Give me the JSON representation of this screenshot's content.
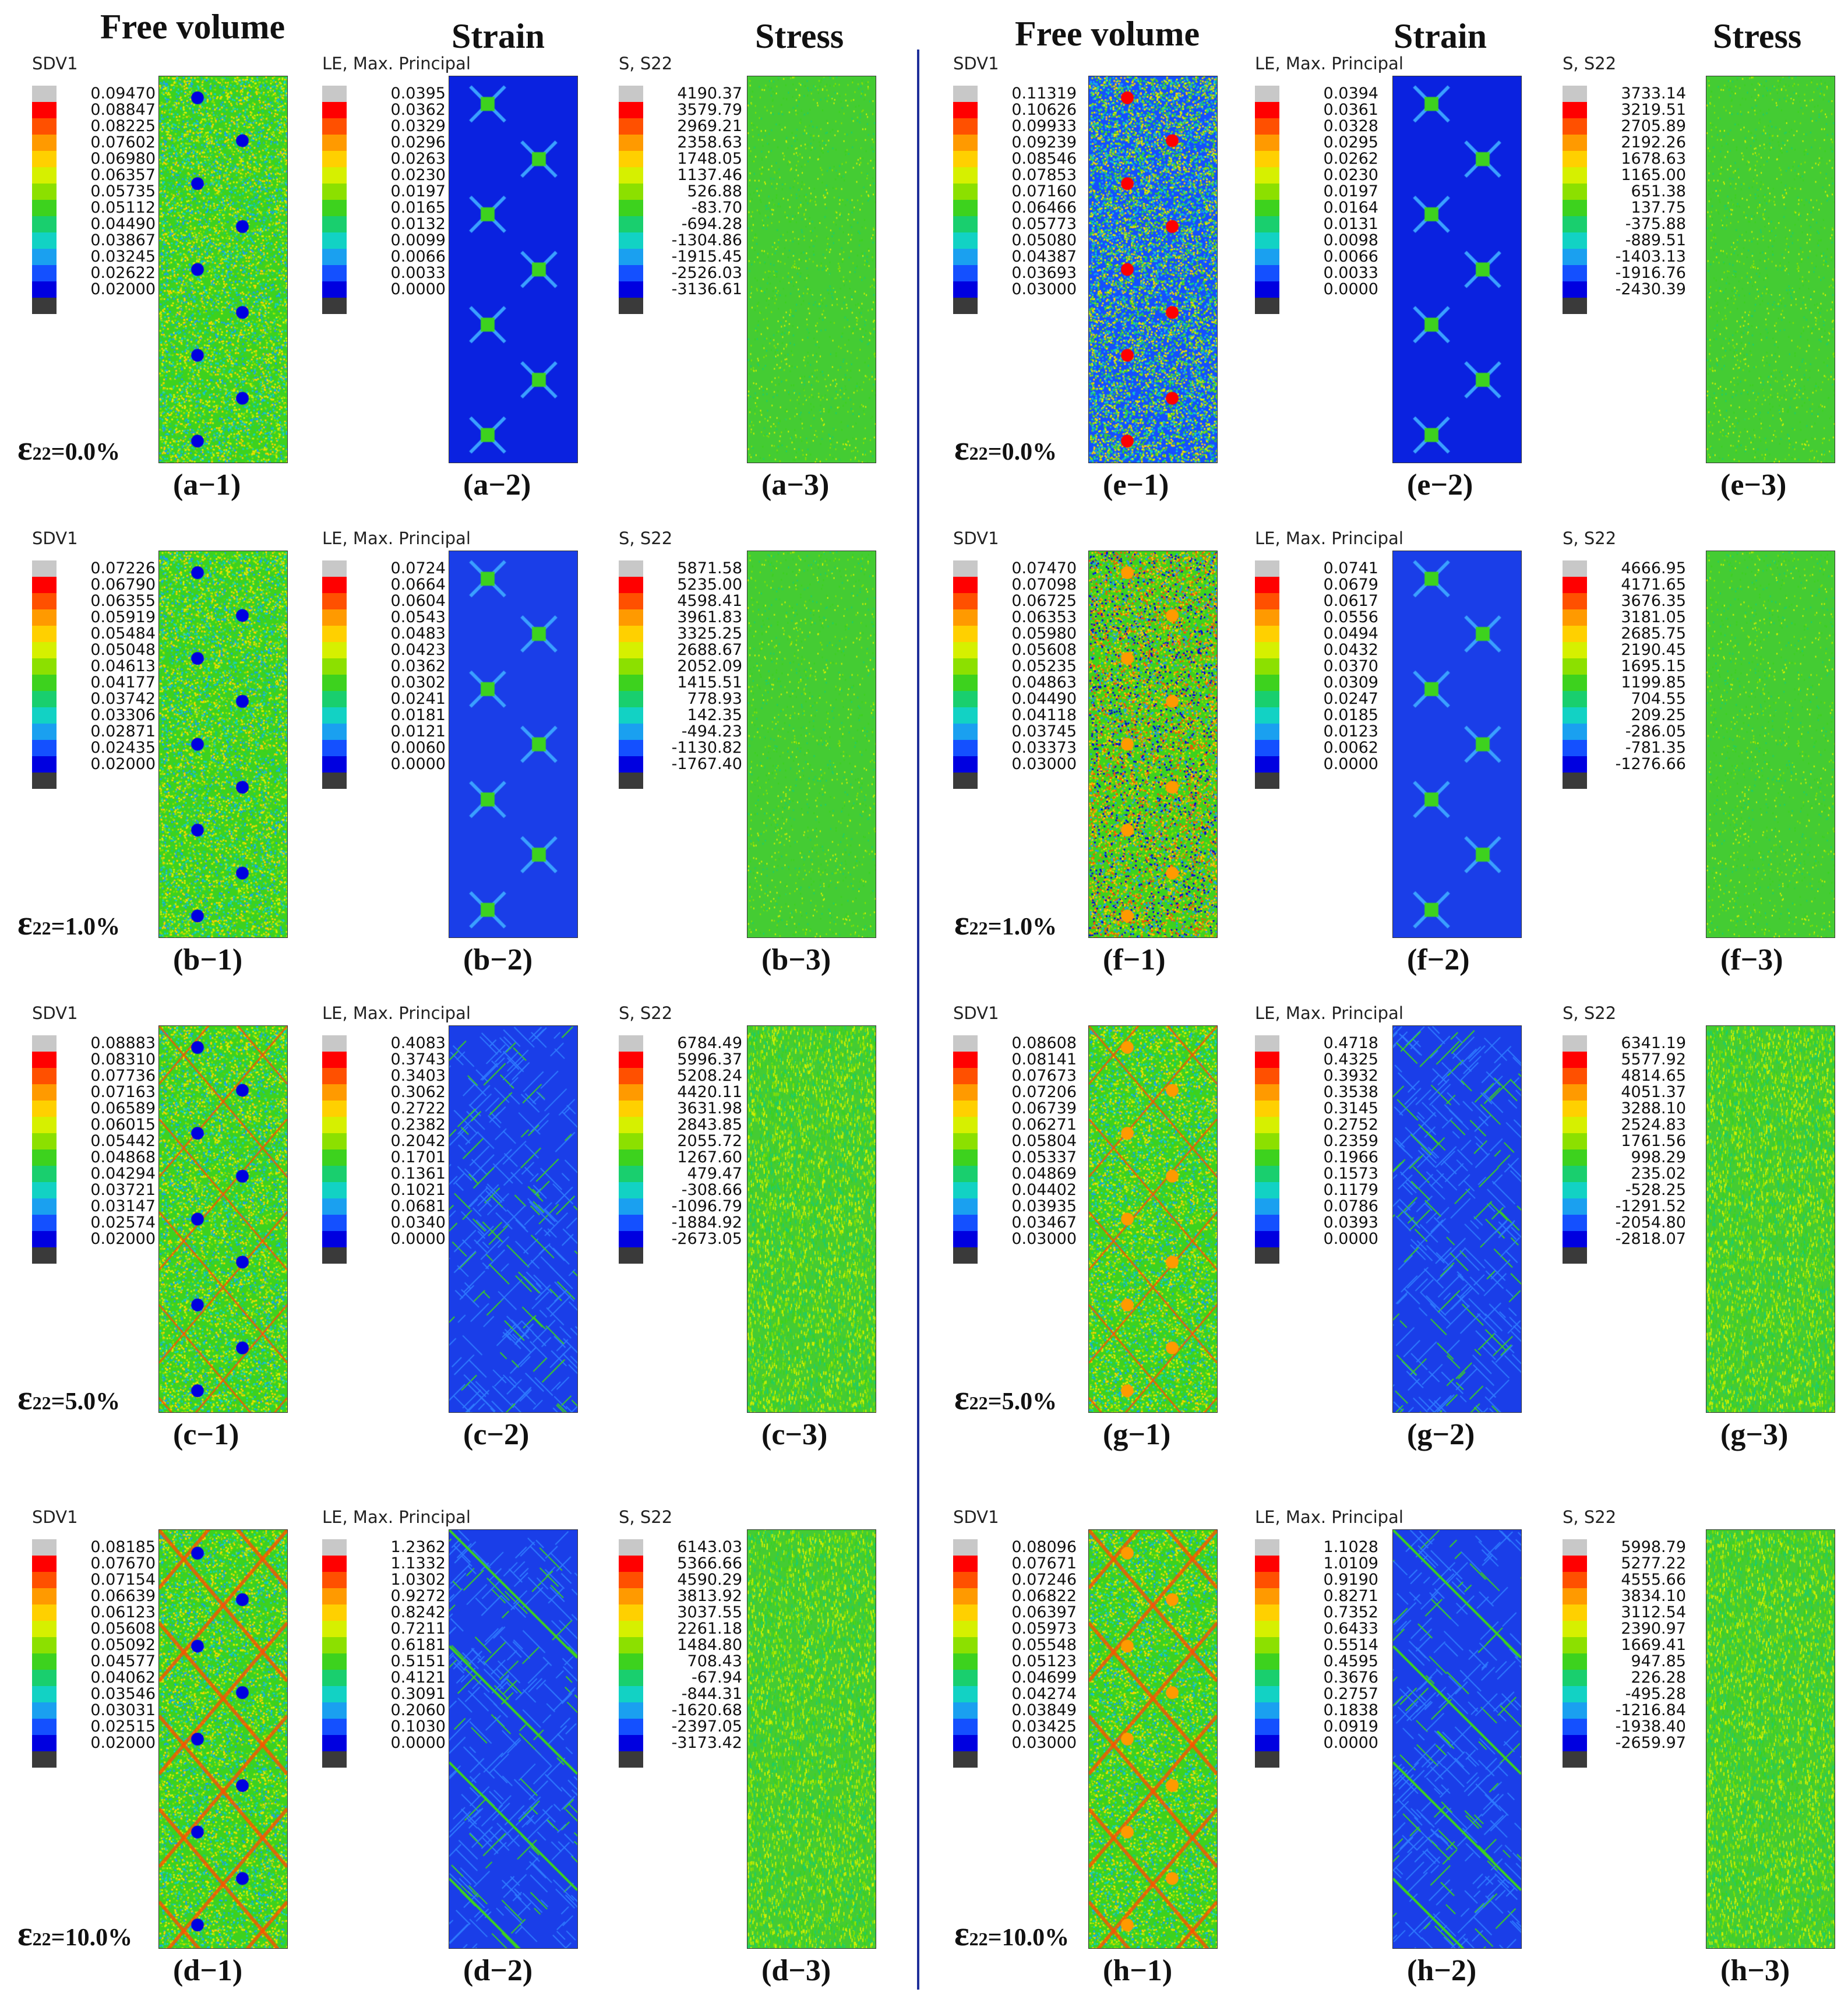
{
  "headers": {
    "left": {
      "free_volume": "Free volume",
      "strain": "Strain",
      "stress": "Stress"
    },
    "right": {
      "free_volume": "Free volume",
      "strain": "Strain",
      "stress": "Stress"
    }
  },
  "strain_symbol": "ε",
  "strain_sub": "22",
  "rows": [
    {
      "left": {
        "strain_value": "=0.0%",
        "fv": {
          "title": "SDV1",
          "values": [
            "0.09470",
            "0.08847",
            "0.08225",
            "0.07602",
            "0.06980",
            "0.06357",
            "0.05735",
            "0.05112",
            "0.04490",
            "0.03867",
            "0.03245",
            "0.02622",
            "0.02000"
          ],
          "label": "(a−1)"
        },
        "st": {
          "title": "LE, Max. Principal",
          "values": [
            "0.0395",
            "0.0362",
            "0.0329",
            "0.0296",
            "0.0263",
            "0.0230",
            "0.0197",
            "0.0165",
            "0.0132",
            "0.0099",
            "0.0066",
            "0.0033",
            "0.0000"
          ],
          "label": "(a−2)"
        },
        "ss": {
          "title": "S, S22",
          "values": [
            "4190.37",
            "3579.79",
            "2969.21",
            "2358.63",
            "1748.05",
            "1137.46",
            "526.88",
            "-83.70",
            "-694.28",
            "-1304.86",
            "-1915.45",
            "-2526.03",
            "-3136.61"
          ],
          "label": "(a−3)"
        }
      },
      "right": {
        "strain_value": "=0.0%",
        "fv": {
          "title": "SDV1",
          "values": [
            "0.11319",
            "0.10626",
            "0.09933",
            "0.09239",
            "0.08546",
            "0.07853",
            "0.07160",
            "0.06466",
            "0.05773",
            "0.05080",
            "0.04387",
            "0.03693",
            "0.03000"
          ],
          "label": "(e−1)"
        },
        "st": {
          "title": "LE, Max. Principal",
          "values": [
            "0.0394",
            "0.0361",
            "0.0328",
            "0.0295",
            "0.0262",
            "0.0230",
            "0.0197",
            "0.0164",
            "0.0131",
            "0.0098",
            "0.0066",
            "0.0033",
            "0.0000"
          ],
          "label": "(e−2)"
        },
        "ss": {
          "title": "S, S22",
          "values": [
            "3733.14",
            "3219.51",
            "2705.89",
            "2192.26",
            "1678.63",
            "1165.00",
            "651.38",
            "137.75",
            "-375.88",
            "-889.51",
            "-1403.13",
            "-1916.76",
            "-2430.39"
          ],
          "label": "(e−3)"
        }
      }
    },
    {
      "left": {
        "strain_value": "=1.0%",
        "fv": {
          "title": "SDV1",
          "values": [
            "0.07226",
            "0.06790",
            "0.06355",
            "0.05919",
            "0.05484",
            "0.05048",
            "0.04613",
            "0.04177",
            "0.03742",
            "0.03306",
            "0.02871",
            "0.02435",
            "0.02000"
          ],
          "label": "(b−1)"
        },
        "st": {
          "title": "LE, Max. Principal",
          "values": [
            "0.0724",
            "0.0664",
            "0.0604",
            "0.0543",
            "0.0483",
            "0.0423",
            "0.0362",
            "0.0302",
            "0.0241",
            "0.0181",
            "0.0121",
            "0.0060",
            "0.0000"
          ],
          "label": "(b−2)"
        },
        "ss": {
          "title": "S, S22",
          "values": [
            "5871.58",
            "5235.00",
            "4598.41",
            "3961.83",
            "3325.25",
            "2688.67",
            "2052.09",
            "1415.51",
            "778.93",
            "142.35",
            "-494.23",
            "-1130.82",
            "-1767.40"
          ],
          "label": "(b−3)"
        }
      },
      "right": {
        "strain_value": "=1.0%",
        "fv": {
          "title": "SDV1",
          "values": [
            "0.07470",
            "0.07098",
            "0.06725",
            "0.06353",
            "0.05980",
            "0.05608",
            "0.05235",
            "0.04863",
            "0.04490",
            "0.04118",
            "0.03745",
            "0.03373",
            "0.03000"
          ],
          "label": "(f−1)"
        },
        "st": {
          "title": "LE, Max. Principal",
          "values": [
            "0.0741",
            "0.0679",
            "0.0617",
            "0.0556",
            "0.0494",
            "0.0432",
            "0.0370",
            "0.0309",
            "0.0247",
            "0.0185",
            "0.0123",
            "0.0062",
            "0.0000"
          ],
          "label": "(f−2)"
        },
        "ss": {
          "title": "S, S22",
          "values": [
            "4666.95",
            "4171.65",
            "3676.35",
            "3181.05",
            "2685.75",
            "2190.45",
            "1695.15",
            "1199.85",
            "704.55",
            "209.25",
            "-286.05",
            "-781.35",
            "-1276.66"
          ],
          "label": "(f−3)"
        }
      }
    },
    {
      "left": {
        "strain_value": "=5.0%",
        "fv": {
          "title": "SDV1",
          "values": [
            "0.08883",
            "0.08310",
            "0.07736",
            "0.07163",
            "0.06589",
            "0.06015",
            "0.05442",
            "0.04868",
            "0.04294",
            "0.03721",
            "0.03147",
            "0.02574",
            "0.02000"
          ],
          "label": "(c−1)"
        },
        "st": {
          "title": "LE, Max. Principal",
          "values": [
            "0.4083",
            "0.3743",
            "0.3403",
            "0.3062",
            "0.2722",
            "0.2382",
            "0.2042",
            "0.1701",
            "0.1361",
            "0.1021",
            "0.0681",
            "0.0340",
            "0.0000"
          ],
          "label": "(c−2)"
        },
        "ss": {
          "title": "S, S22",
          "values": [
            "6784.49",
            "5996.37",
            "5208.24",
            "4420.11",
            "3631.98",
            "2843.85",
            "2055.72",
            "1267.60",
            "479.47",
            "-308.66",
            "-1096.79",
            "-1884.92",
            "-2673.05"
          ],
          "label": "(c−3)"
        }
      },
      "right": {
        "strain_value": "=5.0%",
        "fv": {
          "title": "SDV1",
          "values": [
            "0.08608",
            "0.08141",
            "0.07673",
            "0.07206",
            "0.06739",
            "0.06271",
            "0.05804",
            "0.05337",
            "0.04869",
            "0.04402",
            "0.03935",
            "0.03467",
            "0.03000"
          ],
          "label": "(g−1)"
        },
        "st": {
          "title": "LE, Max. Principal",
          "values": [
            "0.4718",
            "0.4325",
            "0.3932",
            "0.3538",
            "0.3145",
            "0.2752",
            "0.2359",
            "0.1966",
            "0.1573",
            "0.1179",
            "0.0786",
            "0.0393",
            "0.0000"
          ],
          "label": "(g−2)"
        },
        "ss": {
          "title": "S, S22",
          "values": [
            "6341.19",
            "5577.92",
            "4814.65",
            "4051.37",
            "3288.10",
            "2524.83",
            "1761.56",
            "998.29",
            "235.02",
            "-528.25",
            "-1291.52",
            "-2054.80",
            "-2818.07"
          ],
          "label": "(g−3)"
        }
      }
    },
    {
      "left": {
        "strain_value": "=10.0%",
        "fv": {
          "title": "SDV1",
          "values": [
            "0.08185",
            "0.07670",
            "0.07154",
            "0.06639",
            "0.06123",
            "0.05608",
            "0.05092",
            "0.04577",
            "0.04062",
            "0.03546",
            "0.03031",
            "0.02515",
            "0.02000"
          ],
          "label": "(d−1)"
        },
        "st": {
          "title": "LE, Max. Principal",
          "values": [
            "1.2362",
            "1.1332",
            "1.0302",
            "0.9272",
            "0.8242",
            "0.7211",
            "0.6181",
            "0.5151",
            "0.4121",
            "0.3091",
            "0.2060",
            "0.1030",
            "0.0000"
          ],
          "label": "(d−2)"
        },
        "ss": {
          "title": "S, S22",
          "values": [
            "6143.03",
            "5366.66",
            "4590.29",
            "3813.92",
            "3037.55",
            "2261.18",
            "1484.80",
            "708.43",
            "-67.94",
            "-844.31",
            "-1620.68",
            "-2397.05",
            "-3173.42"
          ],
          "label": "(d−3)"
        }
      },
      "right": {
        "strain_value": "=10.0%",
        "fv": {
          "title": "SDV1",
          "values": [
            "0.08096",
            "0.07671",
            "0.07246",
            "0.06822",
            "0.06397",
            "0.05973",
            "0.05548",
            "0.05123",
            "0.04699",
            "0.04274",
            "0.03849",
            "0.03425",
            "0.03000"
          ],
          "label": "(h−1)"
        },
        "st": {
          "title": "LE, Max. Principal",
          "values": [
            "1.1028",
            "1.0109",
            "0.9190",
            "0.8271",
            "0.7352",
            "0.6433",
            "0.5514",
            "0.4595",
            "0.3676",
            "0.2757",
            "0.1838",
            "0.0919",
            "0.0000"
          ],
          "label": "(h−2)"
        },
        "ss": {
          "title": "S, S22",
          "values": [
            "5998.79",
            "5277.22",
            "4555.66",
            "3834.10",
            "3112.54",
            "2390.97",
            "1669.41",
            "947.85",
            "226.28",
            "-495.28",
            "-1216.84",
            "-1938.40",
            "-2659.97"
          ],
          "label": "(h−3)"
        }
      }
    }
  ],
  "colors": {
    "colormap": [
      "#c8c8c8",
      "#ff0000",
      "#ff5000",
      "#ff9a00",
      "#ffd000",
      "#d6f000",
      "#8ce000",
      "#3dd21e",
      "#19cf6e",
      "#12d2c4",
      "#1aa0f0",
      "#1450ff",
      "#0000e0",
      "#3a3a3a"
    ],
    "contour_blue": "#0a22e0",
    "stress_green": "#44cc33",
    "divider": "#1f2f9a"
  }
}
